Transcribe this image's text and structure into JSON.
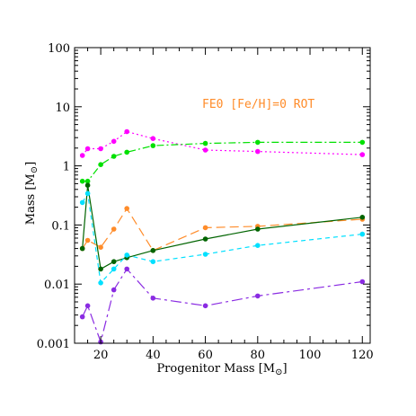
{
  "chart_data": {
    "type": "line",
    "title": "",
    "annotation": {
      "text": "FE0 [Fe/H]=0 ROT",
      "color": "#ff8c2a"
    },
    "xlabel": "Progenitor Mass [M",
    "ylabel": "Mass [M",
    "sun_symbol": "⊙",
    "xlim": [
      10,
      123
    ],
    "ylim": [
      0.001,
      100
    ],
    "yscale": "log",
    "x_ticks": [
      20,
      40,
      60,
      80,
      100,
      120
    ],
    "x_tick_labels": [
      "20",
      "40",
      "60",
      "80",
      "100",
      "120"
    ],
    "y_ticks": [
      0.001,
      0.01,
      0.1,
      1,
      10,
      100
    ],
    "y_tick_labels": [
      "0.001",
      "0.01",
      "0.1",
      "1",
      "10",
      "100"
    ],
    "grid": false,
    "x": [
      13,
      15,
      20,
      25,
      30,
      40,
      60,
      80,
      120
    ],
    "series": [
      {
        "color": "#ff00ff",
        "dash": "2,3",
        "values": [
          1.5,
          1.95,
          1.95,
          2.6,
          3.8,
          2.9,
          1.85,
          1.75,
          1.55
        ]
      },
      {
        "color": "#00e000",
        "dash": "8,3,2,3",
        "values": [
          0.55,
          0.55,
          1.05,
          1.45,
          1.7,
          2.2,
          2.4,
          2.5,
          2.5
        ]
      },
      {
        "color": "#ff8c2a",
        "dash": "10,5",
        "values": [
          0.04,
          0.055,
          0.042,
          0.085,
          0.19,
          0.037,
          0.09,
          0.095,
          0.125
        ]
      },
      {
        "color": "#006400",
        "dash": "",
        "values": [
          0.04,
          0.47,
          0.018,
          0.024,
          0.028,
          0.037,
          0.058,
          0.085,
          0.135
        ]
      },
      {
        "color": "#00e0ff",
        "dash": "5,4",
        "values": [
          0.24,
          0.34,
          0.0105,
          0.018,
          0.031,
          0.024,
          0.032,
          0.045,
          0.07
        ]
      },
      {
        "color": "#8a2be2",
        "dash": "12,4,3,4",
        "values": [
          0.0028,
          0.0043,
          0.00105,
          0.008,
          0.018,
          0.0058,
          0.0043,
          0.0063,
          0.011
        ]
      }
    ]
  }
}
